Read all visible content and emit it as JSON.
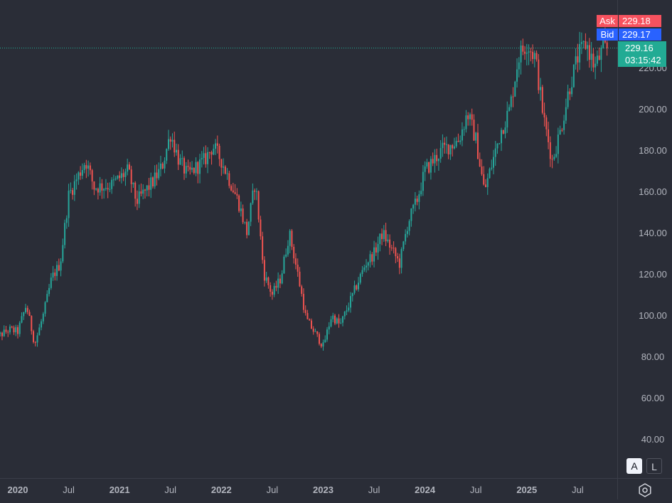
{
  "colors": {
    "background": "#2a2d37",
    "up": "#26a69a",
    "down": "#ef5350",
    "axis_text": "#b2b5be",
    "last_price": "#22ab94",
    "ask": "#f7525f",
    "bid": "#2962ff"
  },
  "quote": {
    "ask_label": "Ask",
    "ask_value": "229.18",
    "bid_label": "Bid",
    "bid_value": "229.17",
    "last_value": "229.16",
    "countdown": "03:15:42"
  },
  "scale_buttons": {
    "auto": "A",
    "log": "L"
  },
  "chart_data": {
    "type": "candlestick",
    "title": "",
    "xlabel": "",
    "ylabel": "",
    "y_ticks": [
      "220.00",
      "200.00",
      "180.00",
      "160.00",
      "140.00",
      "120.00",
      "100.00",
      "80.00",
      "60.00",
      "40.00"
    ],
    "x_ticks": [
      {
        "label": "2020",
        "date": "2020-01"
      },
      {
        "label": "Jul",
        "date": "2020-07"
      },
      {
        "label": "2021",
        "date": "2021-01"
      },
      {
        "label": "Jul",
        "date": "2021-07"
      },
      {
        "label": "2022",
        "date": "2022-01"
      },
      {
        "label": "Jul",
        "date": "2022-07"
      },
      {
        "label": "2023",
        "date": "2023-01"
      },
      {
        "label": "Jul",
        "date": "2023-07"
      },
      {
        "label": "2024",
        "date": "2024-01"
      },
      {
        "label": "Jul",
        "date": "2024-07"
      },
      {
        "label": "2025",
        "date": "2025-01"
      },
      {
        "label": "Jul",
        "date": "2025-07"
      }
    ],
    "last_price": 229.16,
    "price_path": [
      [
        "2019-10",
        88
      ],
      [
        "2019-12",
        93
      ],
      [
        "2020-01",
        92
      ],
      [
        "2020-02",
        105
      ],
      [
        "2020-03",
        86
      ],
      [
        "2020-04",
        100
      ],
      [
        "2020-05",
        118
      ],
      [
        "2020-06",
        125
      ],
      [
        "2020-07",
        158
      ],
      [
        "2020-09",
        175
      ],
      [
        "2020-10",
        162
      ],
      [
        "2020-12",
        163
      ],
      [
        "2021-02",
        170
      ],
      [
        "2021-03",
        155
      ],
      [
        "2021-05",
        165
      ],
      [
        "2021-06",
        172
      ],
      [
        "2021-07",
        188
      ],
      [
        "2021-08",
        175
      ],
      [
        "2021-09",
        168
      ],
      [
        "2021-11",
        175
      ],
      [
        "2021-12",
        182
      ],
      [
        "2022-01",
        175
      ],
      [
        "2022-03",
        155
      ],
      [
        "2022-04",
        140
      ],
      [
        "2022-05",
        165
      ],
      [
        "2022-06",
        120
      ],
      [
        "2022-07",
        110
      ],
      [
        "2022-08",
        118
      ],
      [
        "2022-09",
        140
      ],
      [
        "2022-10",
        120
      ],
      [
        "2022-11",
        98
      ],
      [
        "2023-01",
        85
      ],
      [
        "2023-02",
        100
      ],
      [
        "2023-03",
        95
      ],
      [
        "2023-04",
        105
      ],
      [
        "2023-06",
        125
      ],
      [
        "2023-07",
        130
      ],
      [
        "2023-08",
        140
      ],
      [
        "2023-10",
        125
      ],
      [
        "2023-11",
        145
      ],
      [
        "2023-12",
        155
      ],
      [
        "2024-01",
        170
      ],
      [
        "2024-03",
        180
      ],
      [
        "2024-05",
        185
      ],
      [
        "2024-06",
        198
      ],
      [
        "2024-07",
        185
      ],
      [
        "2024-08",
        160
      ],
      [
        "2024-09",
        175
      ],
      [
        "2024-10",
        190
      ],
      [
        "2024-11",
        200
      ],
      [
        "2024-12",
        225
      ],
      [
        "2025-01",
        232
      ],
      [
        "2025-02",
        225
      ],
      [
        "2025-03",
        195
      ],
      [
        "2025-04",
        175
      ],
      [
        "2025-05",
        190
      ],
      [
        "2025-06",
        210
      ],
      [
        "2025-07",
        225
      ],
      [
        "2025-08",
        232
      ],
      [
        "2025-09",
        220
      ],
      [
        "2025-10",
        229
      ]
    ]
  }
}
